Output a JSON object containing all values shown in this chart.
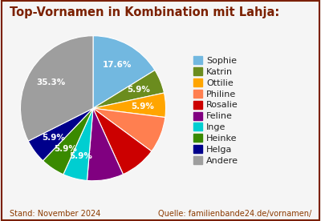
{
  "title": "Top-Vornamen in Kombination mit Lahja:",
  "title_color": "#7B2000",
  "labels": [
    "Sophie",
    "Katrin",
    "Ottilie",
    "Philine",
    "Rosalie",
    "Feline",
    "Inge",
    "Heinke",
    "Helga",
    "Andere"
  ],
  "values": [
    17.6,
    5.88,
    5.88,
    8.82,
    8.82,
    8.82,
    5.88,
    5.88,
    5.88,
    35.3
  ],
  "colors": [
    "#72B8E0",
    "#6B8C1E",
    "#FFA500",
    "#FF7F50",
    "#CC0000",
    "#800080",
    "#00CED1",
    "#3A8A00",
    "#00008B",
    "#9E9E9E"
  ],
  "pct_show": {
    "Sophie": "17.6%",
    "Andere": "35.3%",
    "Ottilie": "5.9%"
  },
  "footer_left": "Stand: November 2024",
  "footer_right": "Quelle: familienbande24.de/vornamen/",
  "footer_color": "#8B3A00",
  "background_color": "#F5F5F5",
  "border_color": "#7B2000",
  "title_fontsize": 10.5,
  "legend_fontsize": 8,
  "footer_fontsize": 7
}
